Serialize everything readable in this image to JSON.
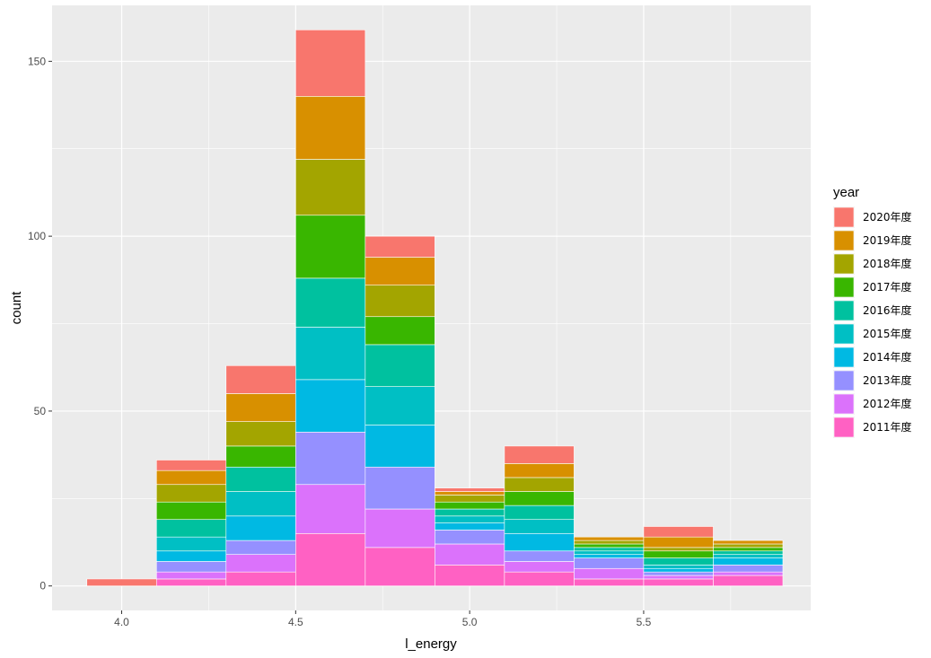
{
  "chart_data": {
    "type": "bar",
    "stacked": true,
    "xlabel": "l_energy",
    "ylabel": "count",
    "xlim": [
      3.8,
      5.98
    ],
    "ylim": [
      -7,
      166
    ],
    "bin_width": 0.2,
    "x_ticks": [
      4.0,
      4.5,
      5.0,
      5.5
    ],
    "x_tick_labels": [
      "4.0",
      "4.5",
      "5.0",
      "5.5"
    ],
    "y_ticks": [
      0,
      50,
      100,
      150
    ],
    "y_tick_labels": [
      "0",
      "50",
      "100",
      "150"
    ],
    "x_minor_ticks": [
      4.25,
      4.75,
      5.25,
      5.75
    ],
    "y_minor_ticks": [
      25,
      75,
      125
    ],
    "grid": true,
    "legend": {
      "title": "year",
      "position": "right"
    },
    "categories": [
      4.0,
      4.2,
      4.4,
      4.6,
      4.8,
      5.0,
      5.2,
      5.4,
      5.6,
      5.8
    ],
    "series": [
      {
        "name": "2011年度",
        "color": "#FF61C3",
        "values": [
          0,
          2,
          4,
          15,
          11,
          6,
          4,
          2,
          2,
          3
        ]
      },
      {
        "name": "2012年度",
        "color": "#DB72FB",
        "values": [
          0,
          2,
          5,
          14,
          11,
          6,
          3,
          3,
          1,
          1
        ]
      },
      {
        "name": "2013年度",
        "color": "#9590FF",
        "values": [
          0,
          3,
          4,
          15,
          12,
          4,
          3,
          3,
          1,
          2
        ]
      },
      {
        "name": "2014年度",
        "color": "#00B9E3",
        "values": [
          0,
          3,
          7,
          15,
          12,
          2,
          5,
          1,
          1,
          2
        ]
      },
      {
        "name": "2015年度",
        "color": "#00BFC4",
        "values": [
          0,
          4,
          7,
          15,
          11,
          2,
          4,
          1,
          1,
          1
        ]
      },
      {
        "name": "2016年度",
        "color": "#00C19F",
        "values": [
          0,
          5,
          7,
          14,
          12,
          2,
          4,
          1,
          2,
          1
        ]
      },
      {
        "name": "2017年度",
        "color": "#39B600",
        "values": [
          0,
          5,
          6,
          18,
          8,
          2,
          4,
          1,
          2,
          1
        ]
      },
      {
        "name": "2018年度",
        "color": "#A3A500",
        "values": [
          0,
          5,
          7,
          16,
          9,
          2,
          4,
          1,
          1,
          1
        ]
      },
      {
        "name": "2019年度",
        "color": "#D89000",
        "values": [
          0,
          4,
          8,
          18,
          8,
          1,
          4,
          1,
          3,
          1
        ]
      },
      {
        "name": "2020年度",
        "color": "#F8766D",
        "values": [
          2,
          3,
          8,
          19,
          6,
          1,
          5,
          0,
          3,
          0
        ]
      }
    ]
  },
  "colors": {
    "panel_background": "#EBEBEB",
    "grid_major": "#FFFFFF",
    "bar_outline": "#FFFFFF",
    "tick_text": "#4D4D4D"
  }
}
